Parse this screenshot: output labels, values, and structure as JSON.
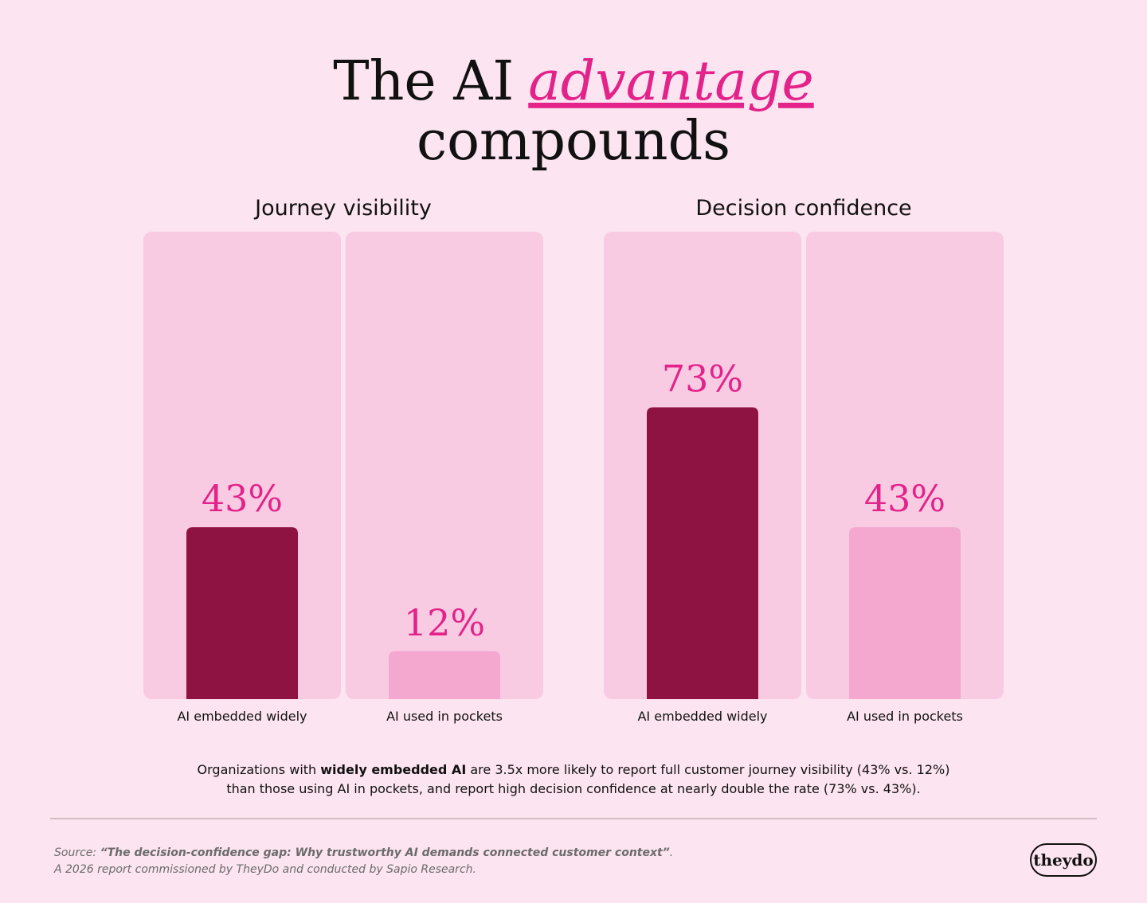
{
  "header": {
    "title_start": "The AI",
    "title_emphasis": "advantage",
    "title_end": "compounds"
  },
  "chart_data": [
    {
      "type": "bar",
      "title": "Journey visibility",
      "categories": [
        "AI embedded widely",
        "AI used in pockets"
      ],
      "values": [
        43,
        12
      ],
      "value_labels": [
        "43%",
        "12%"
      ],
      "colors": [
        "#8e1242",
        "#f4a8d0"
      ],
      "ylim": [
        0,
        100
      ]
    },
    {
      "type": "bar",
      "title": "Decision confidence",
      "categories": [
        "AI embedded widely",
        "AI used in pockets"
      ],
      "values": [
        73,
        43
      ],
      "value_labels": [
        "73%",
        "43%"
      ],
      "colors": [
        "#8e1242",
        "#f4a8d0"
      ],
      "ylim": [
        0,
        100
      ]
    }
  ],
  "note": {
    "lead": "Organizations with",
    "bold": "widely embedded AI",
    "line1": "are 3.5x more likely to report full customer journey visibility (43% vs. 12%)",
    "line2": "than those using AI in pockets, and report high decision confidence at nearly double the rate (73% vs. 43%)."
  },
  "source": {
    "label": "Source:",
    "title": "“The decision-confidence gap: Why trustworthy AI demands connected customer context”",
    "end": ".",
    "line2": "A 2026 report commissioned by TheyDo and conducted by Sapio Research."
  },
  "logo": "theydo"
}
